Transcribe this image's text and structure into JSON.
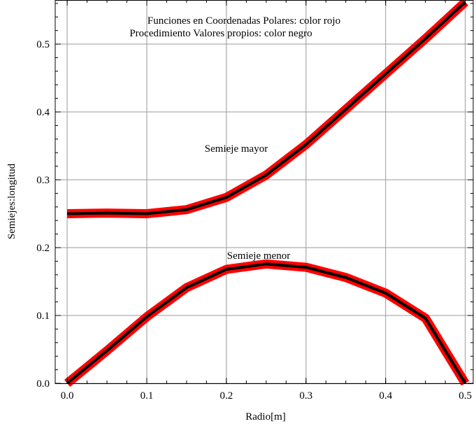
{
  "chart_data": {
    "type": "line",
    "title": "",
    "xlabel": "Radio[m]",
    "ylabel": "Semiejes:longitud",
    "xlim": [
      -0.015,
      0.51
    ],
    "ylim": [
      0,
      0.565
    ],
    "xticks": [
      0.0,
      0.1,
      0.2,
      0.3,
      0.4,
      0.5
    ],
    "yticks": [
      0.0,
      0.1,
      0.2,
      0.3,
      0.4,
      0.5
    ],
    "xtick_labels": [
      "0.0",
      "0.1",
      "0.2",
      "0.3",
      "0.4",
      "0.5"
    ],
    "ytick_labels": [
      "0.0",
      "0.1",
      "0.2",
      "0.3",
      "0.4",
      "0.5"
    ],
    "grid": true,
    "annotations": {
      "legend_line1": "Funciones en Coordenadas Polares: color rojo",
      "legend_line2": "Procedimiento Valores propios: color negro",
      "semieje_mayor": "Semieje mayor",
      "semieje_menor": "Semieje menor"
    },
    "series": [
      {
        "color": "#ff0000",
        "x": [
          0.0,
          0.05,
          0.1,
          0.15,
          0.2,
          0.25,
          0.3,
          0.35,
          0.4,
          0.45,
          0.5
        ],
        "y": [
          0.25,
          0.251,
          0.25,
          0.256,
          0.274,
          0.307,
          0.352,
          0.404,
          0.456,
          0.508,
          0.562
        ]
      },
      {
        "color": "#000000",
        "x": [
          0.0,
          0.05,
          0.1,
          0.15,
          0.2,
          0.25,
          0.3,
          0.35,
          0.4,
          0.45,
          0.5
        ],
        "y": [
          0.25,
          0.251,
          0.25,
          0.256,
          0.274,
          0.307,
          0.352,
          0.404,
          0.456,
          0.508,
          0.562
        ]
      },
      {
        "color": "#ff0000",
        "x": [
          0.0,
          0.05,
          0.1,
          0.15,
          0.2,
          0.25,
          0.3,
          0.35,
          0.4,
          0.45,
          0.5
        ],
        "y": [
          0.0,
          0.048,
          0.098,
          0.141,
          0.168,
          0.176,
          0.171,
          0.156,
          0.133,
          0.096,
          0.0
        ]
      },
      {
        "color": "#000000",
        "x": [
          0.0,
          0.05,
          0.1,
          0.15,
          0.2,
          0.25,
          0.3,
          0.35,
          0.4,
          0.45,
          0.5
        ],
        "y": [
          0.0,
          0.048,
          0.098,
          0.141,
          0.168,
          0.176,
          0.171,
          0.156,
          0.133,
          0.096,
          0.0
        ]
      }
    ]
  }
}
